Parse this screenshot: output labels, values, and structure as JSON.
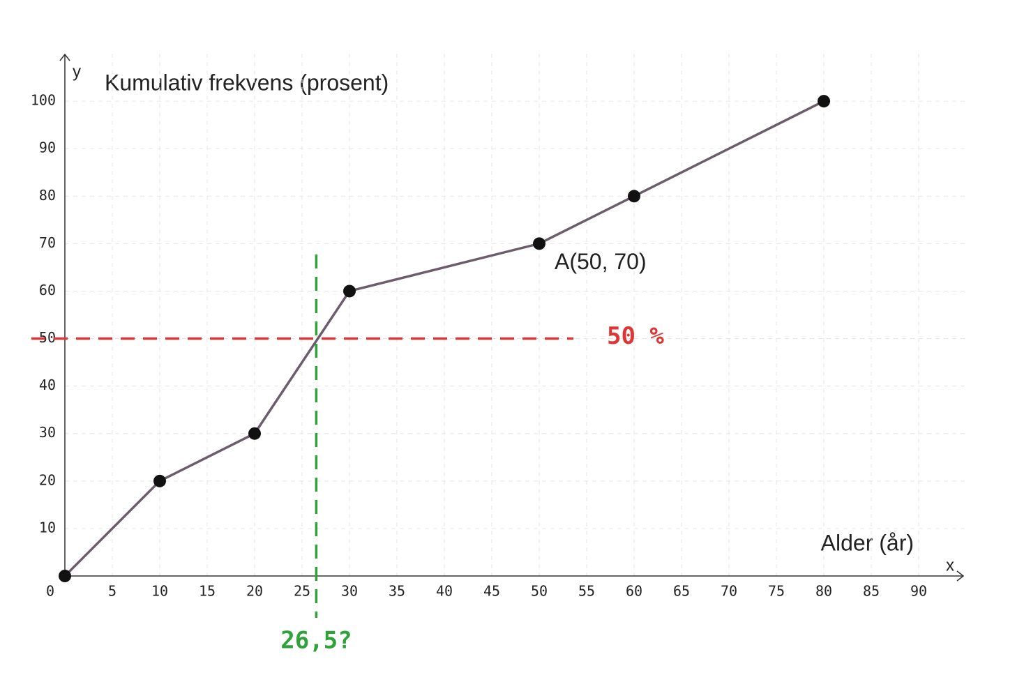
{
  "chart_data": {
    "type": "line",
    "ylabel": "Kumulativ frekvens (prosent)",
    "xlabel": "Alder (år)",
    "x_axis_name": "x",
    "y_axis_name": "y",
    "x": [
      0,
      10,
      20,
      30,
      50,
      60,
      80
    ],
    "values": [
      0,
      20,
      30,
      60,
      70,
      80,
      100
    ],
    "color": "#6b5d6b",
    "marker_color": "#111111",
    "xlim": [
      0,
      95
    ],
    "ylim": [
      0,
      110
    ],
    "xticks": [
      0,
      5,
      10,
      15,
      20,
      25,
      30,
      35,
      40,
      45,
      50,
      55,
      60,
      65,
      70,
      75,
      80,
      85,
      90
    ],
    "yticks": [
      10,
      20,
      30,
      40,
      50,
      60,
      70,
      80,
      90,
      100
    ],
    "grid": true,
    "annotations": [
      {
        "text": "A(50, 70)",
        "x": 50,
        "y": 70
      }
    ],
    "reference_lines": [
      {
        "axis": "y",
        "value": 50,
        "color": "#e03535",
        "label": "50 %"
      },
      {
        "axis": "x",
        "value": 26.5,
        "color": "#2fa33a",
        "label": "26,5?"
      }
    ]
  }
}
